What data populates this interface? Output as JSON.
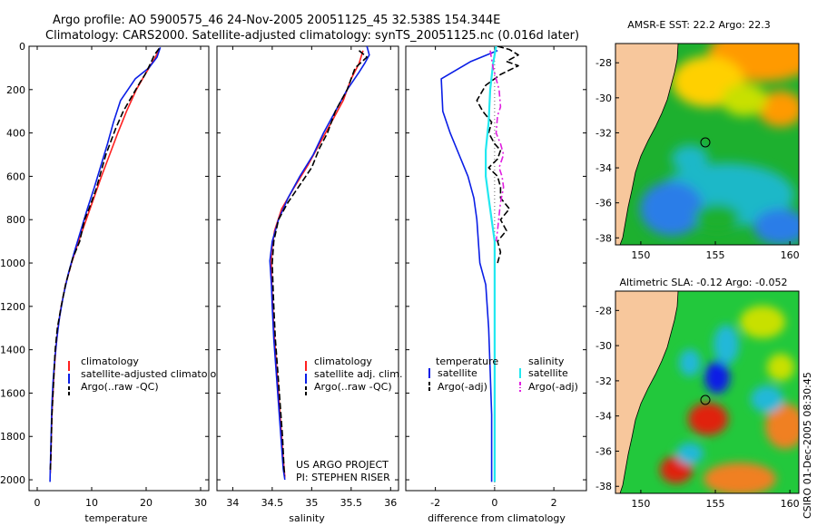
{
  "header": {
    "line1": "Argo profile: AO 5900575_46 24-Nov-2005 20051125_45 32.538S 154.344E",
    "line2": "Climatology: CARS2000. Satellite-adjusted climatology: synTS_20051125.nc (0.016d later)"
  },
  "colors": {
    "climatology": "#ff2020",
    "satellite": "#0a1ee6",
    "argo": "#000000",
    "salinity_satellite": "#22e8f0",
    "salinity_argo": "#e020e0",
    "land": "#f7c79c"
  },
  "y_axis": {
    "ylim": [
      0,
      2050
    ],
    "ticks": [
      "0",
      "200",
      "400",
      "600",
      "800",
      "1000",
      "1200",
      "1400",
      "1600",
      "1800",
      "2000"
    ],
    "tick_values": [
      0,
      200,
      400,
      600,
      800,
      1000,
      1200,
      1400,
      1600,
      1800,
      2000
    ]
  },
  "chart_data": [
    {
      "type": "line",
      "id": "temperature",
      "xlabel": "temperature",
      "xlim": [
        -1.5,
        31.5
      ],
      "xticks": [
        0,
        10,
        20,
        30
      ],
      "xtick_labels": [
        "0",
        "10",
        "20",
        "30"
      ],
      "legend": [
        "climatology",
        "satellite-adjusted climatology",
        "Argo(..raw -QC)"
      ],
      "series": [
        {
          "name": "climatology",
          "style": "solid",
          "points": [
            [
              22.3,
              20
            ],
            [
              21.5,
              60
            ],
            [
              19.8,
              130
            ],
            [
              18.2,
              200
            ],
            [
              16.4,
              300
            ],
            [
              14.8,
              400
            ],
            [
              13.3,
              500
            ],
            [
              11.8,
              600
            ],
            [
              10.4,
              700
            ],
            [
              9.0,
              800
            ],
            [
              7.6,
              900
            ],
            [
              6.3,
              1000
            ],
            [
              5.2,
              1100
            ],
            [
              4.4,
              1200
            ],
            [
              3.8,
              1300
            ],
            [
              3.4,
              1400
            ],
            [
              3.1,
              1500
            ],
            [
              2.9,
              1600
            ],
            [
              2.7,
              1700
            ],
            [
              2.6,
              1800
            ],
            [
              2.5,
              1900
            ],
            [
              2.4,
              1970
            ]
          ]
        },
        {
          "name": "satellite-adjusted climatology",
          "style": "solid",
          "points": [
            [
              22.6,
              5
            ],
            [
              22.0,
              50
            ],
            [
              20.5,
              100
            ],
            [
              18.0,
              150
            ],
            [
              15.3,
              250
            ],
            [
              14.0,
              350
            ],
            [
              12.9,
              450
            ],
            [
              11.7,
              550
            ],
            [
              10.5,
              650
            ],
            [
              9.2,
              750
            ],
            [
              8.0,
              850
            ],
            [
              6.8,
              950
            ],
            [
              5.7,
              1050
            ],
            [
              4.8,
              1150
            ],
            [
              4.1,
              1250
            ],
            [
              3.6,
              1350
            ],
            [
              3.2,
              1450
            ],
            [
              2.9,
              1550
            ],
            [
              2.7,
              1650
            ],
            [
              2.6,
              1750
            ],
            [
              2.5,
              1850
            ],
            [
              2.4,
              1950
            ],
            [
              2.35,
              2010
            ]
          ]
        },
        {
          "name": "Argo(..raw -QC)",
          "style": "dash",
          "points": [
            [
              22.4,
              10
            ],
            [
              21.5,
              40
            ],
            [
              20.8,
              80
            ],
            [
              19.8,
              130
            ],
            [
              18.8,
              170
            ],
            [
              17.4,
              230
            ],
            [
              15.8,
              300
            ],
            [
              14.4,
              380
            ],
            [
              13.8,
              420
            ],
            [
              12.6,
              500
            ],
            [
              11.7,
              580
            ],
            [
              10.8,
              660
            ],
            [
              9.5,
              750
            ],
            [
              8.7,
              800
            ],
            [
              7.8,
              900
            ],
            [
              6.5,
              980
            ],
            [
              5.2,
              1100
            ],
            [
              4.4,
              1200
            ],
            [
              3.7,
              1300
            ],
            [
              3.3,
              1400
            ],
            [
              3.1,
              1500
            ],
            [
              2.9,
              1600
            ],
            [
              2.7,
              1700
            ],
            [
              2.6,
              1800
            ],
            [
              2.5,
              1900
            ],
            [
              2.4,
              1960
            ]
          ]
        }
      ]
    },
    {
      "type": "line",
      "id": "salinity",
      "xlabel": "salinity",
      "xlim": [
        33.8,
        36.1
      ],
      "xticks": [
        34,
        34.5,
        35,
        35.5,
        36
      ],
      "xtick_labels": [
        "34",
        "34.5",
        "35",
        "35.5",
        "36"
      ],
      "legend": [
        "climatology",
        "satellite adj. clim.",
        "Argo(..raw -QC)"
      ],
      "annotation": [
        "US ARGO PROJECT",
        "PI: STEPHEN RISER"
      ],
      "series": [
        {
          "name": "climatology",
          "style": "solid",
          "points": [
            [
              35.65,
              20
            ],
            [
              35.6,
              80
            ],
            [
              35.5,
              150
            ],
            [
              35.4,
              250
            ],
            [
              35.25,
              350
            ],
            [
              35.1,
              450
            ],
            [
              34.95,
              550
            ],
            [
              34.78,
              650
            ],
            [
              34.62,
              750
            ],
            [
              34.53,
              850
            ],
            [
              34.49,
              950
            ],
            [
              34.49,
              1050
            ],
            [
              34.5,
              1150
            ],
            [
              34.52,
              1300
            ],
            [
              34.55,
              1450
            ],
            [
              34.58,
              1600
            ],
            [
              34.61,
              1750
            ],
            [
              34.64,
              1900
            ],
            [
              34.66,
              1990
            ]
          ]
        },
        {
          "name": "satellite adj. clim.",
          "style": "solid",
          "points": [
            [
              35.7,
              0
            ],
            [
              35.73,
              40
            ],
            [
              35.67,
              80
            ],
            [
              35.6,
              120
            ],
            [
              35.45,
              200
            ],
            [
              35.3,
              300
            ],
            [
              35.15,
              400
            ],
            [
              35.02,
              500
            ],
            [
              34.85,
              600
            ],
            [
              34.7,
              700
            ],
            [
              34.58,
              800
            ],
            [
              34.5,
              900
            ],
            [
              34.47,
              990
            ],
            [
              34.49,
              1100
            ],
            [
              34.5,
              1200
            ],
            [
              34.52,
              1350
            ],
            [
              34.55,
              1500
            ],
            [
              34.58,
              1650
            ],
            [
              34.61,
              1800
            ],
            [
              34.64,
              1950
            ],
            [
              34.66,
              2000
            ]
          ]
        },
        {
          "name": "Argo(..raw -QC)",
          "style": "dash",
          "points": [
            [
              35.6,
              20
            ],
            [
              35.7,
              50
            ],
            [
              35.55,
              100
            ],
            [
              35.5,
              150
            ],
            [
              35.45,
              200
            ],
            [
              35.3,
              300
            ],
            [
              35.2,
              400
            ],
            [
              35.1,
              470
            ],
            [
              35.0,
              560
            ],
            [
              34.85,
              640
            ],
            [
              34.7,
              720
            ],
            [
              34.58,
              800
            ],
            [
              34.52,
              900
            ],
            [
              34.5,
              1000
            ],
            [
              34.51,
              1100
            ],
            [
              34.52,
              1200
            ],
            [
              34.54,
              1350
            ],
            [
              34.57,
              1500
            ],
            [
              34.6,
              1650
            ],
            [
              34.63,
              1800
            ],
            [
              34.65,
              1950
            ],
            [
              34.66,
              1980
            ]
          ]
        }
      ]
    },
    {
      "type": "line",
      "id": "difference",
      "xlabel": "difference from climatology",
      "xlim": [
        -3,
        3.1
      ],
      "xticks": [
        -2,
        0,
        2
      ],
      "xtick_labels": [
        "-2",
        "0",
        "2"
      ],
      "legend": {
        "temperature_header": "temperature",
        "salinity_header": "salinity",
        "temperature_items": [
          "satellite",
          "Argo(-adj)"
        ],
        "salinity_items": [
          "satellite",
          "Argo(-adj)"
        ]
      },
      "series": [
        {
          "name": "temperature satellite",
          "style": "solid",
          "points": [
            [
              0.1,
              20
            ],
            [
              -0.8,
              70
            ],
            [
              -1.8,
              150
            ],
            [
              -1.75,
              300
            ],
            [
              -1.5,
              400
            ],
            [
              -1.2,
              500
            ],
            [
              -0.9,
              600
            ],
            [
              -0.7,
              700
            ],
            [
              -0.6,
              800
            ],
            [
              -0.5,
              1000
            ],
            [
              -0.3,
              1100
            ],
            [
              -0.2,
              1300
            ],
            [
              -0.15,
              1500
            ],
            [
              -0.1,
              1700
            ],
            [
              -0.1,
              1900
            ],
            [
              -0.1,
              2010
            ]
          ]
        },
        {
          "name": "temperature Argo(-adj)",
          "style": "dash",
          "points": [
            [
              0.1,
              0
            ],
            [
              0.5,
              15
            ],
            [
              0.8,
              40
            ],
            [
              0.4,
              70
            ],
            [
              0.8,
              90
            ],
            [
              0.2,
              130
            ],
            [
              -0.3,
              180
            ],
            [
              -0.6,
              250
            ],
            [
              -0.4,
              300
            ],
            [
              -0.1,
              350
            ],
            [
              -0.2,
              400
            ],
            [
              0,
              450
            ],
            [
              0.2,
              480
            ],
            [
              0.1,
              520
            ],
            [
              -0.2,
              560
            ],
            [
              0.1,
              600
            ],
            [
              0.2,
              650
            ],
            [
              0.2,
              700
            ],
            [
              0.5,
              750
            ],
            [
              0.2,
              800
            ],
            [
              0.4,
              850
            ],
            [
              0.1,
              900
            ],
            [
              0.2,
              950
            ],
            [
              0.1,
              1000
            ]
          ]
        },
        {
          "name": "salinity satellite",
          "style": "solid",
          "points": [
            [
              0.05,
              0
            ],
            [
              -0.05,
              80
            ],
            [
              -0.15,
              200
            ],
            [
              -0.2,
              350
            ],
            [
              -0.3,
              480
            ],
            [
              -0.3,
              600
            ],
            [
              -0.2,
              700
            ],
            [
              -0.1,
              800
            ],
            [
              0,
              900
            ],
            [
              0,
              1100
            ],
            [
              0,
              1400
            ],
            [
              0,
              1700
            ],
            [
              0,
              2010
            ]
          ]
        },
        {
          "name": "salinity Argo(-adj)",
          "style": "dashdot",
          "points": [
            [
              -0.15,
              20
            ],
            [
              -0.05,
              100
            ],
            [
              0.15,
              200
            ],
            [
              0.2,
              280
            ],
            [
              0.1,
              320
            ],
            [
              0.05,
              400
            ],
            [
              0.2,
              450
            ],
            [
              0.3,
              500
            ],
            [
              0.15,
              560
            ],
            [
              0.25,
              600
            ],
            [
              0.3,
              650
            ],
            [
              0.2,
              720
            ],
            [
              0.15,
              780
            ],
            [
              0.1,
              850
            ],
            [
              0.05,
              900
            ]
          ]
        }
      ]
    }
  ],
  "maps": [
    {
      "id": "sst",
      "title": "AMSR-E SST: 22.2 Argo: 22.3",
      "lon_ticks": [
        "150",
        "155",
        "160"
      ],
      "lat_ticks": [
        "-28",
        "-30",
        "-32",
        "-34",
        "-36",
        "-38"
      ],
      "profile_marker": {
        "lon": 154.34,
        "lat": -32.54
      }
    },
    {
      "id": "sla",
      "title": "Altimetric SLA: -0.12 Argo: -0.052",
      "lon_ticks": [
        "150",
        "155",
        "160"
      ],
      "lat_ticks": [
        "-28",
        "-30",
        "-32",
        "-34",
        "-36",
        "-38"
      ],
      "profile_marker": {
        "lon": 154.34,
        "lat": -32.54
      }
    }
  ],
  "footer": {
    "credit": "CSIRO 01-Dec-2005 08:30:45"
  }
}
